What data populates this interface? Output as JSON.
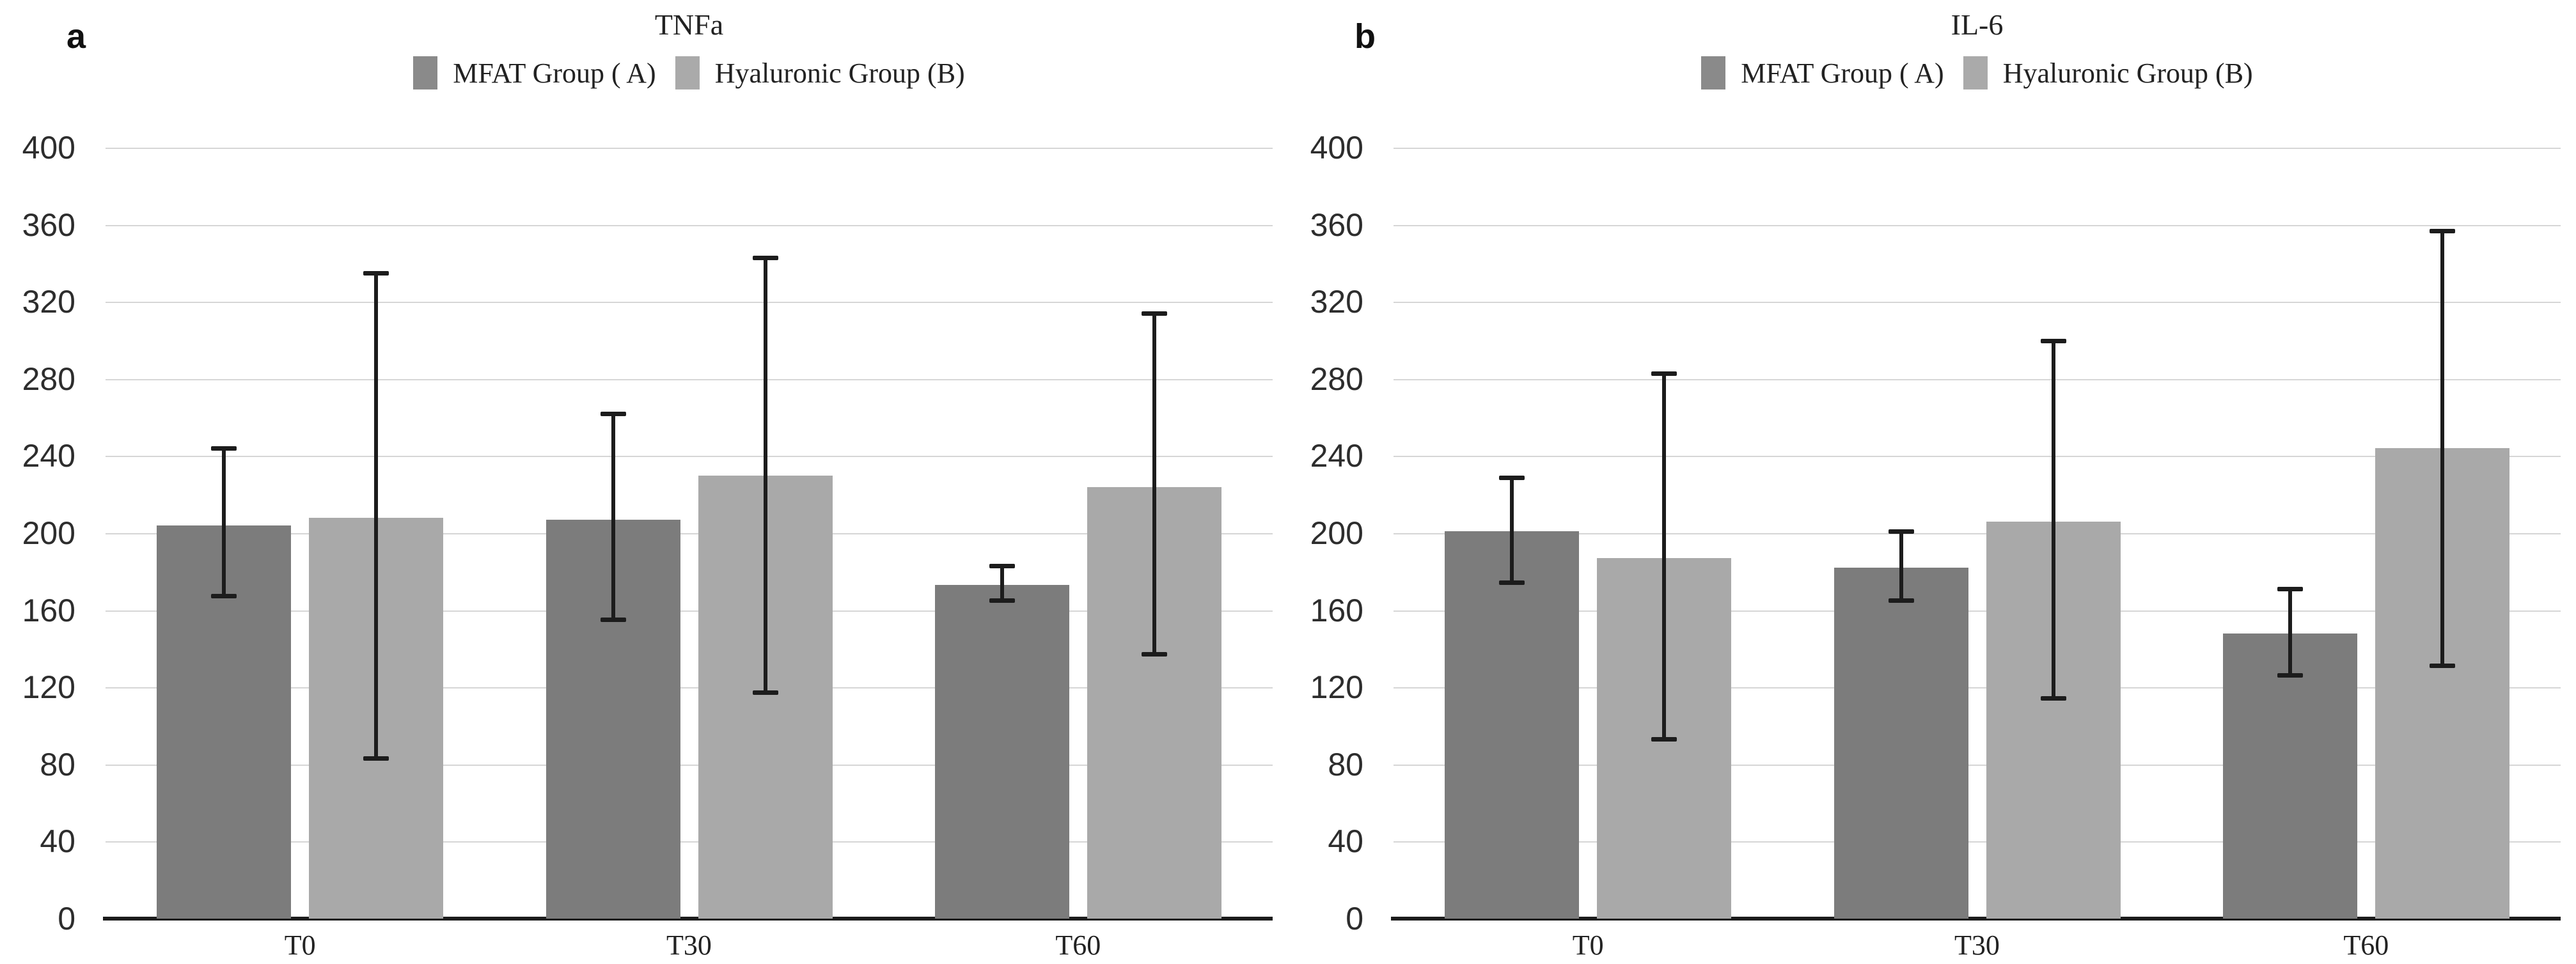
{
  "colors": {
    "mfat_bar": "#7c7c7c",
    "hyaluronic_bar": "#a9a9a9",
    "mfat_swatch": "#8a8a8a",
    "hyaluronic_swatch": "#aaaaaa",
    "gridline": "#d6d6d6",
    "axis": "#1c1c1c",
    "error_bar": "#1c1c1c"
  },
  "chart_data": [
    {
      "type": "bar",
      "panel_label": "a",
      "title": "TNFa",
      "categories": [
        "T0",
        "T30",
        "T60"
      ],
      "xlabel": "",
      "ylabel": "",
      "ylim": [
        0,
        400
      ],
      "y_ticks": [
        400,
        360,
        320,
        280,
        240,
        200,
        160,
        120,
        80,
        40,
        0
      ],
      "grid": true,
      "legend_position": "top",
      "error_bars": true,
      "series": [
        {
          "name": "MFAT Group ( A)",
          "values": [
            204,
            207,
            173
          ],
          "error_low": [
            167,
            155,
            165
          ],
          "error_high": [
            244,
            262,
            183
          ]
        },
        {
          "name": "Hyaluronic Group (B)",
          "values": [
            208,
            230,
            224
          ],
          "error_low": [
            83,
            117,
            137
          ],
          "error_high": [
            335,
            343,
            314
          ]
        }
      ]
    },
    {
      "type": "bar",
      "panel_label": "b",
      "title": "IL-6",
      "categories": [
        "T0",
        "T30",
        "T60"
      ],
      "xlabel": "",
      "ylabel": "",
      "ylim": [
        0,
        400
      ],
      "y_ticks": [
        400,
        360,
        320,
        280,
        240,
        200,
        160,
        120,
        80,
        40,
        0
      ],
      "grid": true,
      "legend_position": "top",
      "error_bars": true,
      "series": [
        {
          "name": "MFAT Group ( A)",
          "values": [
            201,
            182,
            148
          ],
          "error_low": [
            174,
            165,
            126
          ],
          "error_high": [
            229,
            201,
            171
          ]
        },
        {
          "name": "Hyaluronic Group (B)",
          "values": [
            187,
            206,
            244
          ],
          "error_low": [
            93,
            114,
            131
          ],
          "error_high": [
            283,
            300,
            357
          ]
        }
      ]
    }
  ]
}
